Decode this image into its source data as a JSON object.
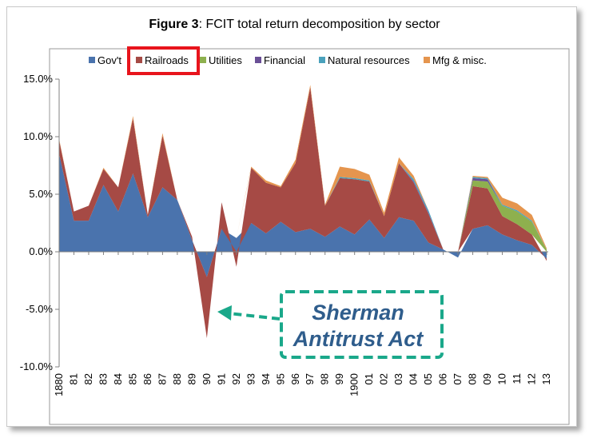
{
  "figure": {
    "title_bold": "Figure 3",
    "title_rest": ": FCIT total return decomposition by sector"
  },
  "chart_data": {
    "type": "area",
    "stacked": true,
    "title": "FCIT total return decomposition by sector",
    "xlabel": "",
    "ylabel": "",
    "ylim": [
      -10,
      15
    ],
    "yticks": [
      -10,
      -5,
      0,
      5,
      10,
      15
    ],
    "ytick_labels": [
      "-10.0%",
      "-5.0%",
      "0.0%",
      "5.0%",
      "10.0%",
      "15.0%"
    ],
    "categories": [
      "1880",
      "81",
      "82",
      "83",
      "84",
      "85",
      "86",
      "87",
      "88",
      "89",
      "90",
      "91",
      "92",
      "93",
      "94",
      "95",
      "96",
      "97",
      "98",
      "99",
      "1900",
      "01",
      "02",
      "03",
      "04",
      "05",
      "06",
      "07",
      "08",
      "09",
      "10",
      "11",
      "12",
      "13"
    ],
    "legend_position": "top",
    "grid": false,
    "series": [
      {
        "name": "Gov't",
        "color": "#4a73ad",
        "values": [
          8.5,
          2.7,
          2.7,
          5.8,
          3.5,
          6.8,
          3.0,
          5.6,
          4.5,
          1.0,
          -2.2,
          2.0,
          1.2,
          2.5,
          1.6,
          2.6,
          1.7,
          2.0,
          1.3,
          2.2,
          1.5,
          2.8,
          1.2,
          3.0,
          2.7,
          0.8,
          0.2,
          -0.5,
          2.0,
          2.3,
          1.5,
          1.0,
          0.6,
          -0.6
        ]
      },
      {
        "name": "Railroads",
        "color": "#a64a45",
        "values": [
          1.2,
          0.8,
          1.3,
          1.4,
          2.1,
          4.8,
          0.2,
          4.5,
          0.0,
          0.3,
          -5.3,
          2.3,
          -1.3,
          4.8,
          4.4,
          3.0,
          6.0,
          12.3,
          2.7,
          4.2,
          4.8,
          3.3,
          1.9,
          4.7,
          3.3,
          2.5,
          0.0,
          0.0,
          3.7,
          3.2,
          1.6,
          1.4,
          0.9,
          -0.2
        ]
      },
      {
        "name": "Utilities",
        "color": "#8eb04e",
        "values": [
          0,
          0,
          0,
          0,
          0,
          0,
          0,
          0,
          0,
          0,
          0,
          0,
          0,
          0,
          0,
          0,
          0,
          0,
          0,
          0,
          0,
          0,
          0,
          0,
          0,
          0,
          0,
          0,
          0.5,
          0.6,
          0.9,
          1.1,
          1.1,
          0.2
        ]
      },
      {
        "name": "Financial",
        "color": "#6a4f96",
        "values": [
          0,
          0,
          0,
          0,
          0,
          0,
          0,
          0,
          0,
          0,
          0,
          0,
          0,
          0,
          0,
          0,
          0,
          0,
          0,
          0,
          0,
          0,
          0,
          0,
          0.1,
          0.1,
          0,
          0,
          0.2,
          0.2,
          0,
          0,
          0,
          0
        ]
      },
      {
        "name": "Natural resources",
        "color": "#4aa1bc",
        "values": [
          0,
          0,
          0,
          0,
          0,
          0,
          0,
          0,
          0,
          0,
          0,
          0,
          0,
          0,
          0,
          0,
          0,
          0,
          0,
          0.1,
          0.1,
          0.1,
          0,
          0,
          0.2,
          0.2,
          0,
          0,
          0.1,
          0.1,
          0.1,
          0.1,
          0.1,
          0
        ]
      },
      {
        "name": "Mfg & misc.",
        "color": "#e5954e",
        "values": [
          0.1,
          0,
          0,
          0.1,
          0,
          0.2,
          0,
          0.2,
          0,
          0,
          0,
          0,
          0,
          0.1,
          0.2,
          0.1,
          0.3,
          0.2,
          0.1,
          0.9,
          0.8,
          0.5,
          0.3,
          0.5,
          0.3,
          0,
          0,
          0,
          0.1,
          0.1,
          0.6,
          0.6,
          0.5,
          0.1
        ]
      }
    ]
  },
  "annotations": {
    "highlight_series": "Railroads",
    "callout_line1": "Sherman",
    "callout_line2": "Antitrust Act",
    "callout_points_to": "90",
    "callout_color": "#1aa88a"
  }
}
